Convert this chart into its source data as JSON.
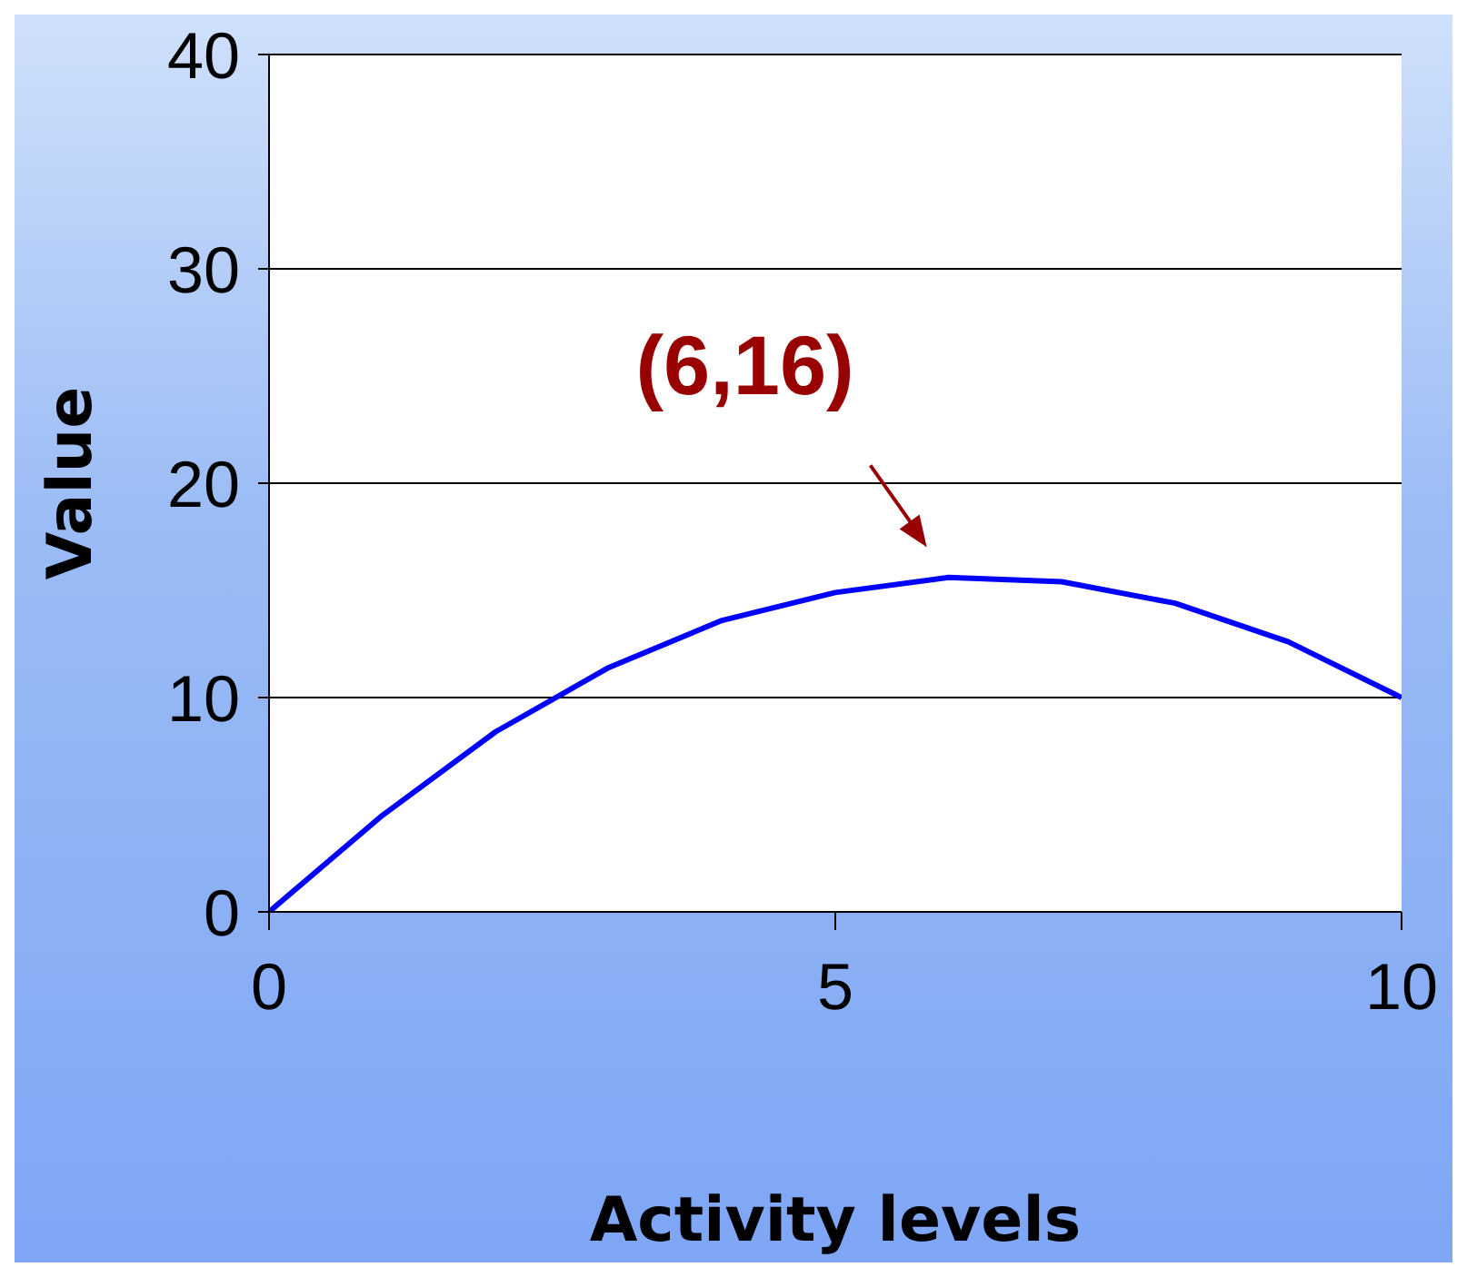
{
  "chart_data": {
    "type": "line",
    "xlabel": "Activity levels",
    "ylabel": "Value",
    "x": [
      0,
      1,
      2,
      3,
      4,
      5,
      6,
      7,
      8,
      9,
      10
    ],
    "series": [
      {
        "color": "#0000ff",
        "values": [
          0,
          4.5,
          8.4,
          11.4,
          13.6,
          14.9,
          15.6,
          15.4,
          14.4,
          12.6,
          10.0
        ]
      }
    ],
    "xlim": [
      0,
      10
    ],
    "xticks": [
      0,
      5,
      10
    ],
    "ylim": [
      0,
      40
    ],
    "yticks": [
      0,
      10,
      20,
      30,
      40
    ],
    "grid": "y",
    "marker": "none",
    "line_style": "solid",
    "annotations": [
      {
        "text": "(6,16)",
        "x": 6,
        "y": 16
      }
    ]
  }
}
